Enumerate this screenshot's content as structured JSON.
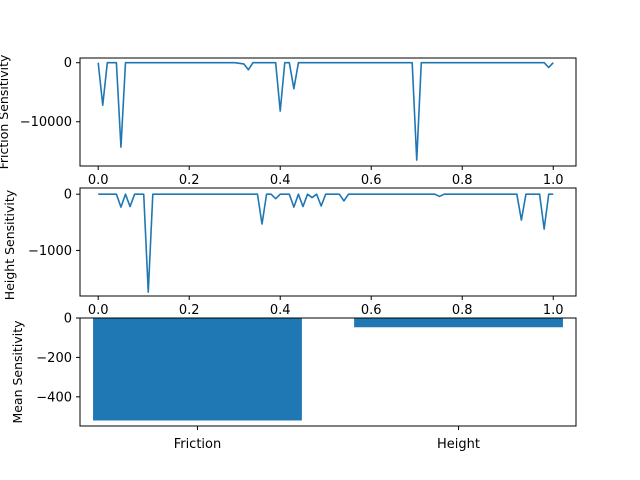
{
  "chart_data": [
    {
      "type": "line",
      "title": "",
      "xlabel": "",
      "ylabel": "Friction Sensitivity",
      "xlim": [
        -0.04,
        1.05
      ],
      "ylim": [
        -17500,
        800
      ],
      "xticks": [
        0.0,
        0.2,
        0.4,
        0.6,
        0.8,
        1.0
      ],
      "xtick_labels": [
        "0.0",
        "0.2",
        "0.4",
        "0.6",
        "0.8",
        "1.0"
      ],
      "yticks": [
        0,
        -10000
      ],
      "ytick_labels": [
        "0",
        "−10000"
      ],
      "grid": false,
      "color": "#1f77b4",
      "series": [
        {
          "x": [
            0.0,
            0.01,
            0.02,
            0.04,
            0.05,
            0.06,
            0.1,
            0.2,
            0.3,
            0.32,
            0.33,
            0.34,
            0.36,
            0.39,
            0.4,
            0.41,
            0.42,
            0.43,
            0.44,
            0.45,
            0.5,
            0.6,
            0.69,
            0.7,
            0.71,
            0.8,
            0.9,
            0.98,
            0.99,
            1.0
          ],
          "y": [
            0,
            -7200,
            0,
            0,
            -14300,
            0,
            0,
            0,
            0,
            -200,
            -1200,
            0,
            0,
            0,
            -8200,
            0,
            0,
            -4400,
            0,
            0,
            0,
            0,
            0,
            -16500,
            0,
            0,
            0,
            0,
            -800,
            0
          ]
        }
      ]
    },
    {
      "type": "line",
      "title": "",
      "xlabel": "",
      "ylabel": "Height Sensitivity",
      "xlim": [
        -0.04,
        1.05
      ],
      "ylim": [
        -1810,
        110
      ],
      "xticks": [
        0.0,
        0.2,
        0.4,
        0.6,
        0.8,
        1.0
      ],
      "xtick_labels": [
        "0.0",
        "0.2",
        "0.4",
        "0.6",
        "0.8",
        "1.0"
      ],
      "yticks": [
        0,
        -1000
      ],
      "ytick_labels": [
        "0",
        "−1000"
      ],
      "grid": false,
      "color": "#1f77b4",
      "series": [
        {
          "x": [
            0.0,
            0.01,
            0.02,
            0.03,
            0.04,
            0.05,
            0.06,
            0.07,
            0.08,
            0.09,
            0.1,
            0.11,
            0.12,
            0.2,
            0.3,
            0.35,
            0.36,
            0.37,
            0.38,
            0.39,
            0.4,
            0.41,
            0.42,
            0.43,
            0.44,
            0.45,
            0.46,
            0.47,
            0.48,
            0.49,
            0.5,
            0.51,
            0.52,
            0.53,
            0.54,
            0.55,
            0.56,
            0.6,
            0.7,
            0.74,
            0.75,
            0.76,
            0.8,
            0.9,
            0.92,
            0.93,
            0.94,
            0.97,
            0.98,
            0.99,
            1.0
          ],
          "y": [
            0,
            0,
            0,
            0,
            0,
            -230,
            0,
            -220,
            0,
            0,
            0,
            -1740,
            0,
            0,
            0,
            0,
            -530,
            0,
            0,
            -80,
            0,
            0,
            0,
            -230,
            0,
            -220,
            0,
            -60,
            0,
            -210,
            0,
            0,
            0,
            0,
            -120,
            0,
            0,
            0,
            0,
            0,
            -40,
            0,
            0,
            0,
            0,
            -460,
            0,
            0,
            -620,
            0,
            0
          ]
        }
      ]
    },
    {
      "type": "bar",
      "title": "",
      "xlabel": "",
      "ylabel": "Mean Sensitivity",
      "categories": [
        "Friction",
        "Height"
      ],
      "values": [
        -520,
        -47
      ],
      "ylim": [
        -548,
        0
      ],
      "yticks": [
        0,
        -200,
        -400
      ],
      "ytick_labels": [
        "0",
        "−200",
        "−400"
      ],
      "grid": false,
      "color": "#1f77b4"
    }
  ]
}
